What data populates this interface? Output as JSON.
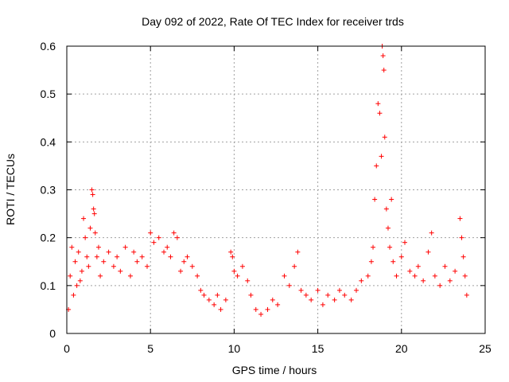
{
  "chart_data": {
    "type": "scatter",
    "title": "Day 092 of 2022, Rate Of TEC Index for receiver trds",
    "xlabel": "GPS time / hours",
    "ylabel": "ROTI / TECUs",
    "xlim": [
      0,
      25
    ],
    "ylim": [
      0,
      0.6
    ],
    "xticks": [
      0,
      5,
      10,
      15,
      20,
      25
    ],
    "xtick_labels": [
      "0",
      "5",
      "10",
      "15",
      "20",
      "25"
    ],
    "yticks": [
      0,
      0.1,
      0.2,
      0.3,
      0.4,
      0.5,
      0.6
    ],
    "ytick_labels": [
      "0",
      "0.1",
      "0.2",
      "0.3",
      "0.4",
      "0.5",
      "0.6"
    ],
    "grid": true,
    "marker": "+",
    "marker_color": "#ff0000",
    "series": [
      {
        "name": "ROTI",
        "points": [
          [
            0.1,
            0.05
          ],
          [
            0.2,
            0.12
          ],
          [
            0.3,
            0.18
          ],
          [
            0.4,
            0.08
          ],
          [
            0.5,
            0.15
          ],
          [
            0.6,
            0.1
          ],
          [
            0.7,
            0.17
          ],
          [
            0.8,
            0.11
          ],
          [
            0.9,
            0.13
          ],
          [
            1.0,
            0.24
          ],
          [
            1.1,
            0.2
          ],
          [
            1.2,
            0.16
          ],
          [
            1.3,
            0.14
          ],
          [
            1.4,
            0.22
          ],
          [
            1.5,
            0.3
          ],
          [
            1.55,
            0.29
          ],
          [
            1.6,
            0.26
          ],
          [
            1.65,
            0.25
          ],
          [
            1.7,
            0.21
          ],
          [
            1.8,
            0.16
          ],
          [
            1.9,
            0.18
          ],
          [
            2.0,
            0.12
          ],
          [
            2.2,
            0.15
          ],
          [
            2.5,
            0.17
          ],
          [
            2.8,
            0.14
          ],
          [
            3.0,
            0.16
          ],
          [
            3.2,
            0.13
          ],
          [
            3.5,
            0.18
          ],
          [
            3.8,
            0.12
          ],
          [
            4.0,
            0.17
          ],
          [
            4.2,
            0.15
          ],
          [
            4.5,
            0.16
          ],
          [
            4.8,
            0.14
          ],
          [
            5.0,
            0.21
          ],
          [
            5.2,
            0.19
          ],
          [
            5.5,
            0.2
          ],
          [
            5.8,
            0.17
          ],
          [
            6.0,
            0.18
          ],
          [
            6.2,
            0.16
          ],
          [
            6.4,
            0.21
          ],
          [
            6.6,
            0.2
          ],
          [
            6.8,
            0.13
          ],
          [
            7.0,
            0.15
          ],
          [
            7.2,
            0.16
          ],
          [
            7.5,
            0.14
          ],
          [
            7.8,
            0.12
          ],
          [
            8.0,
            0.09
          ],
          [
            8.2,
            0.08
          ],
          [
            8.5,
            0.07
          ],
          [
            8.8,
            0.06
          ],
          [
            9.0,
            0.08
          ],
          [
            9.2,
            0.05
          ],
          [
            9.5,
            0.07
          ],
          [
            9.8,
            0.17
          ],
          [
            9.9,
            0.16
          ],
          [
            10.0,
            0.13
          ],
          [
            10.2,
            0.12
          ],
          [
            10.5,
            0.14
          ],
          [
            10.8,
            0.11
          ],
          [
            11.0,
            0.08
          ],
          [
            11.3,
            0.05
          ],
          [
            11.6,
            0.04
          ],
          [
            12.0,
            0.05
          ],
          [
            12.3,
            0.07
          ],
          [
            12.6,
            0.06
          ],
          [
            13.0,
            0.12
          ],
          [
            13.3,
            0.1
          ],
          [
            13.6,
            0.14
          ],
          [
            13.8,
            0.17
          ],
          [
            14.0,
            0.09
          ],
          [
            14.3,
            0.08
          ],
          [
            14.6,
            0.07
          ],
          [
            15.0,
            0.09
          ],
          [
            15.3,
            0.06
          ],
          [
            15.6,
            0.08
          ],
          [
            16.0,
            0.07
          ],
          [
            16.3,
            0.09
          ],
          [
            16.6,
            0.08
          ],
          [
            17.0,
            0.07
          ],
          [
            17.3,
            0.09
          ],
          [
            17.6,
            0.11
          ],
          [
            18.0,
            0.12
          ],
          [
            18.2,
            0.15
          ],
          [
            18.3,
            0.18
          ],
          [
            18.4,
            0.28
          ],
          [
            18.5,
            0.35
          ],
          [
            18.6,
            0.48
          ],
          [
            18.7,
            0.46
          ],
          [
            18.8,
            0.37
          ],
          [
            18.85,
            0.6
          ],
          [
            18.9,
            0.58
          ],
          [
            18.95,
            0.55
          ],
          [
            19.0,
            0.41
          ],
          [
            19.1,
            0.26
          ],
          [
            19.2,
            0.22
          ],
          [
            19.3,
            0.18
          ],
          [
            19.4,
            0.28
          ],
          [
            19.5,
            0.15
          ],
          [
            19.7,
            0.12
          ],
          [
            20.0,
            0.16
          ],
          [
            20.2,
            0.19
          ],
          [
            20.5,
            0.13
          ],
          [
            20.8,
            0.12
          ],
          [
            21.0,
            0.14
          ],
          [
            21.3,
            0.11
          ],
          [
            21.6,
            0.17
          ],
          [
            21.8,
            0.21
          ],
          [
            22.0,
            0.12
          ],
          [
            22.3,
            0.1
          ],
          [
            22.6,
            0.14
          ],
          [
            22.9,
            0.11
          ],
          [
            23.2,
            0.13
          ],
          [
            23.5,
            0.24
          ],
          [
            23.6,
            0.2
          ],
          [
            23.7,
            0.16
          ],
          [
            23.8,
            0.12
          ],
          [
            23.9,
            0.08
          ]
        ]
      }
    ],
    "notes": "Dense red '+' scatter with baseline ROTI mostly 0.0–0.15 TECUs across the whole day; points listed are representative envelope values."
  }
}
